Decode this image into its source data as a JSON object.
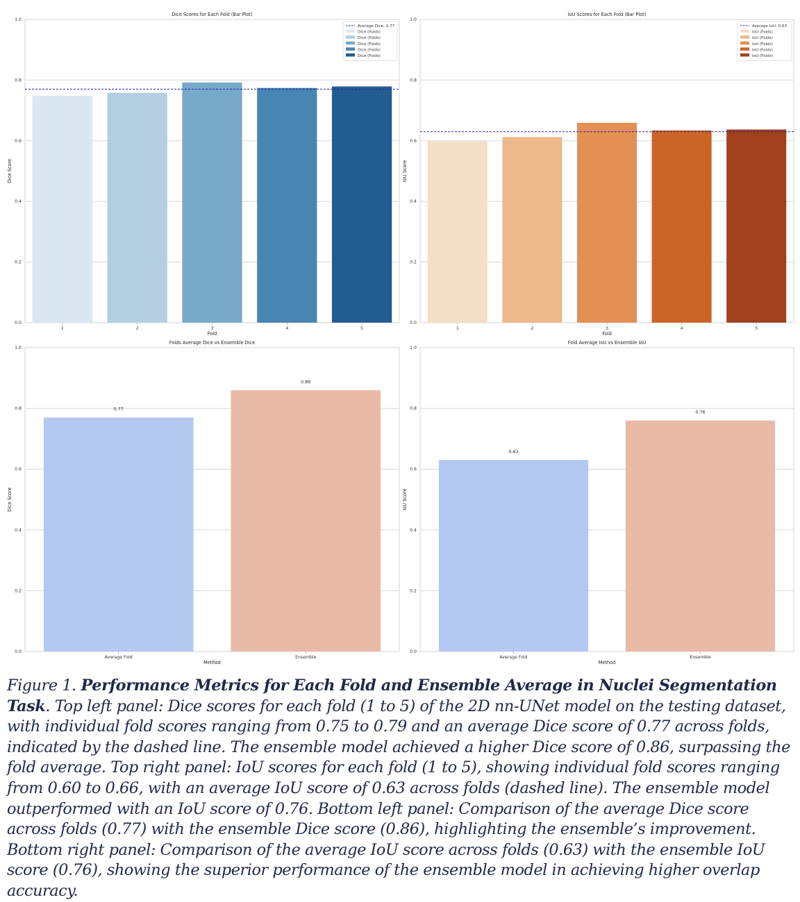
{
  "colors": {
    "grid": "#dadada",
    "frame": "#d6d6d6",
    "axis_text": "#333333",
    "avg_line": "#1f1fbf",
    "caption_text": "#1f2a4a"
  },
  "chart_data": [
    {
      "type": "bar",
      "title": "Dice Scores for Each Fold (Bar Plot)",
      "xlabel": "Fold",
      "ylabel": "Dice Score",
      "ylim": [
        0,
        1.0
      ],
      "yticks": [
        "0.0",
        "0.2",
        "0.4",
        "0.6",
        "0.8",
        "1.0"
      ],
      "categories": [
        "1",
        "2",
        "3",
        "4",
        "5"
      ],
      "values": [
        0.748,
        0.758,
        0.792,
        0.774,
        0.779
      ],
      "colors": [
        "#dbe7f3",
        "#b3cfe1",
        "#77a9c9",
        "#4785b2",
        "#225c91"
      ],
      "grid": true,
      "legend_position": "top-right",
      "average_line": {
        "value": 0.77,
        "label": "Average Dice: 0.77"
      },
      "legend": [
        "Dice (Folds)",
        "Dice (Folds)",
        "Dice (Folds)",
        "Dice (Folds)",
        "Dice (Folds)"
      ]
    },
    {
      "type": "bar",
      "title": "IoU Scores for Each Fold (Bar Plot)",
      "xlabel": "Fold",
      "ylabel": "IoU Score",
      "ylim": [
        0,
        1.0
      ],
      "yticks": [
        "0.0",
        "0.2",
        "0.4",
        "0.6",
        "0.8",
        "1.0"
      ],
      "categories": [
        "1",
        "2",
        "3",
        "4",
        "5"
      ],
      "values": [
        0.598,
        0.612,
        0.659,
        0.634,
        0.637
      ],
      "colors": [
        "#f5dec6",
        "#edb98b",
        "#e48f54",
        "#cc6428",
        "#a0411b"
      ],
      "grid": true,
      "legend_position": "top-right",
      "average_line": {
        "value": 0.63,
        "label": "Average IoU: 0.63"
      },
      "legend": [
        "IoU (Folds)",
        "IoU (Folds)",
        "IoU (Folds)",
        "IoU (Folds)",
        "IoU (Folds)"
      ]
    },
    {
      "type": "bar",
      "title": "Folds Average Dice vs Ensemble Dice",
      "xlabel": "Method",
      "ylabel": "Dice Score",
      "ylim": [
        0,
        1.0
      ],
      "yticks": [
        "0.0",
        "0.2",
        "0.4",
        "0.6",
        "0.8",
        "1.0"
      ],
      "categories": [
        "Average Fold",
        "Ensemble"
      ],
      "values": [
        0.77,
        0.86
      ],
      "data_labels": [
        "0.77",
        "0.86"
      ],
      "colors": [
        "#b4c9f1",
        "#e9bba7"
      ],
      "grid": true
    },
    {
      "type": "bar",
      "title": "Fold Average IoU vs Ensemble IoU",
      "xlabel": "Method",
      "ylabel": "IoU Score",
      "ylim": [
        0,
        1.0
      ],
      "yticks": [
        "0.0",
        "0.2",
        "0.4",
        "0.6",
        "0.8",
        "1.0"
      ],
      "categories": [
        "Average Fold",
        "Ensemble"
      ],
      "values": [
        0.63,
        0.76
      ],
      "data_labels": [
        "0.63",
        "0.76"
      ],
      "colors": [
        "#b4c9f1",
        "#e9bba7"
      ],
      "grid": true
    }
  ],
  "caption": {
    "label": "Figure 1. ",
    "title": "Performance Metrics for Each Fold and Ensemble Average in Nuclei Segmentation Task",
    "body": ". Top left panel: Dice scores for each fold (1 to 5) of the 2D nn-UNet model on the testing dataset, with individual fold scores ranging from 0.75 to 0.79 and an average Dice score of 0.77 across folds, indicated by the dashed line. The ensemble model achieved a higher Dice score of 0.86, surpassing the fold average. Top right panel: IoU scores for each fold (1 to 5), showing individual fold scores ranging from 0.60 to 0.66, with an average IoU score of 0.63 across folds (dashed line). The ensemble model outperformed with an IoU score of 0.76. Bottom left panel: Comparison of the average Dice score across folds (0.77) with the ensemble Dice score (0.86), highlighting the ensemble’s improvement. Bottom right panel: Comparison of the average IoU score across folds (0.63) with the ensemble IoU score (0.76), showing the superior performance of the ensemble model in achieving higher overlap accuracy."
  }
}
